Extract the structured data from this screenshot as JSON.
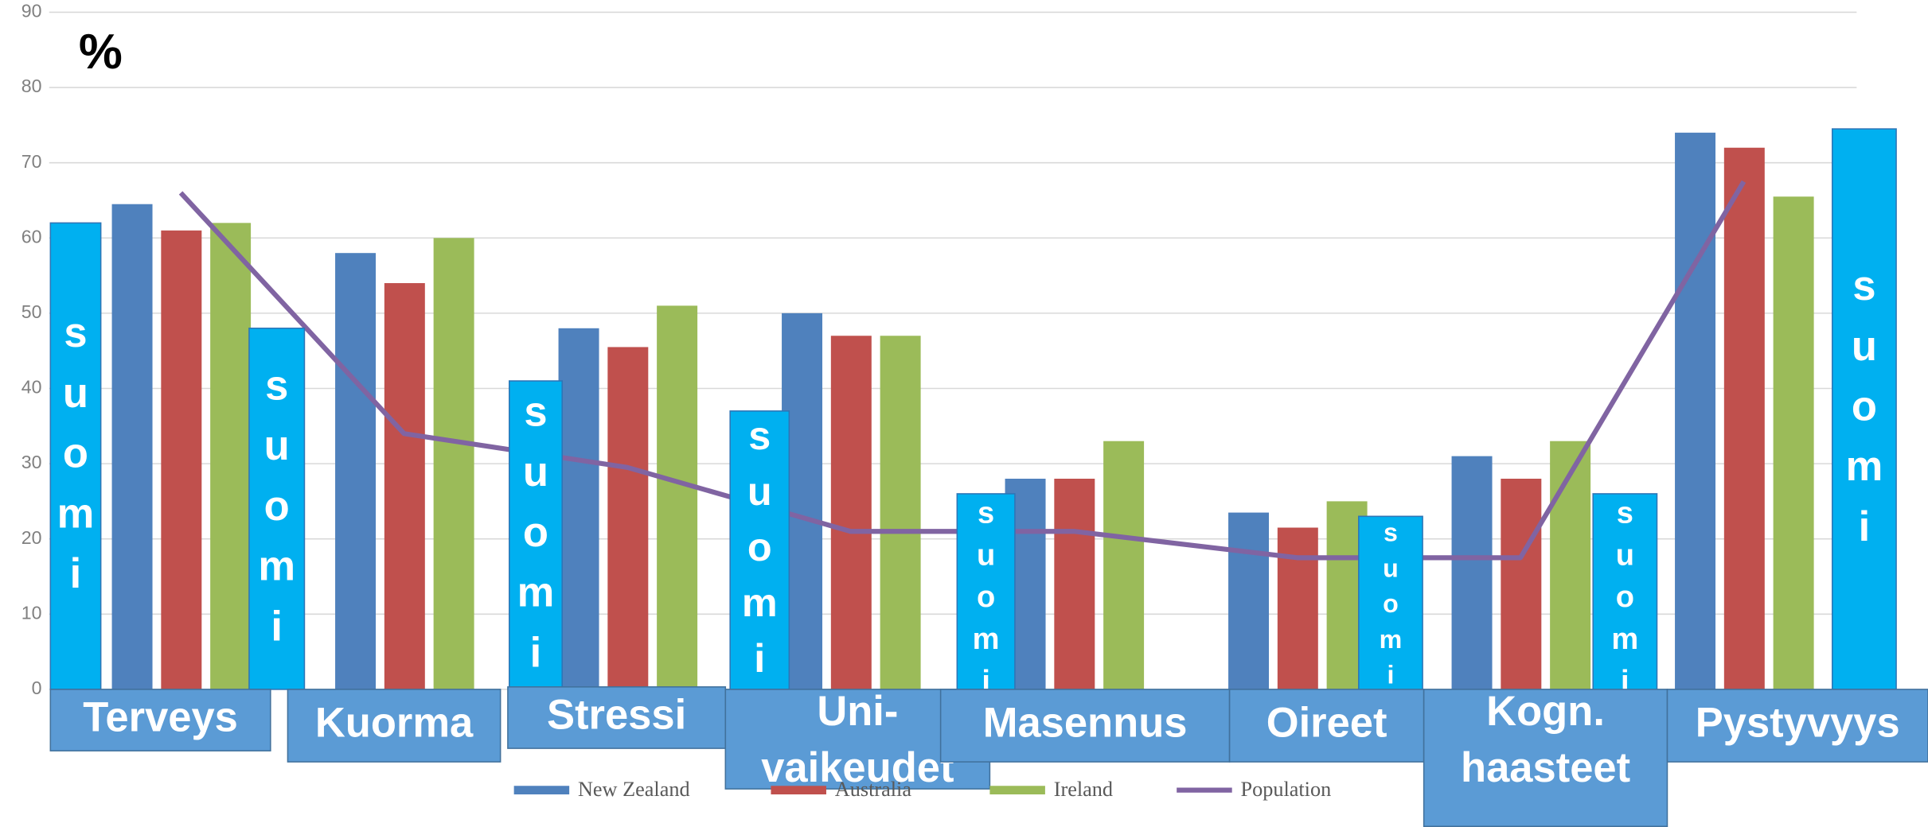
{
  "chart_data": {
    "type": "bar",
    "y_label": "%",
    "categories": [
      "Terveys",
      "Kuorma",
      "Stressi",
      "Uni-\nvaikeudet",
      "Masennus",
      "Oireet",
      "Kogn.\nhaasteet",
      "Pystyvyys"
    ],
    "series": [
      {
        "name": "suomi",
        "color": "#00b0f0",
        "values": [
          62,
          48,
          41,
          37,
          26,
          23,
          26,
          74.5
        ]
      },
      {
        "name": "New Zealand",
        "color": "#4f81bd",
        "values": [
          64.5,
          58,
          48,
          50,
          28,
          23.5,
          31,
          74
        ]
      },
      {
        "name": "Australia",
        "color": "#c0504d",
        "values": [
          61,
          54,
          45.5,
          47,
          28,
          21.5,
          28,
          72
        ]
      },
      {
        "name": "Ireland",
        "color": "#9bbb59",
        "values": [
          62,
          60,
          51,
          47,
          33,
          25,
          33,
          65.5
        ]
      },
      {
        "name": "Population",
        "type": "line",
        "color": "#8064a2",
        "values": [
          66,
          34,
          29.5,
          21,
          21,
          17.5,
          17.5,
          67.5
        ]
      }
    ],
    "ylim": [
      0,
      90
    ],
    "yticks": [
      0,
      10,
      20,
      30,
      40,
      50,
      60,
      70,
      80,
      90
    ],
    "grid": true
  }
}
